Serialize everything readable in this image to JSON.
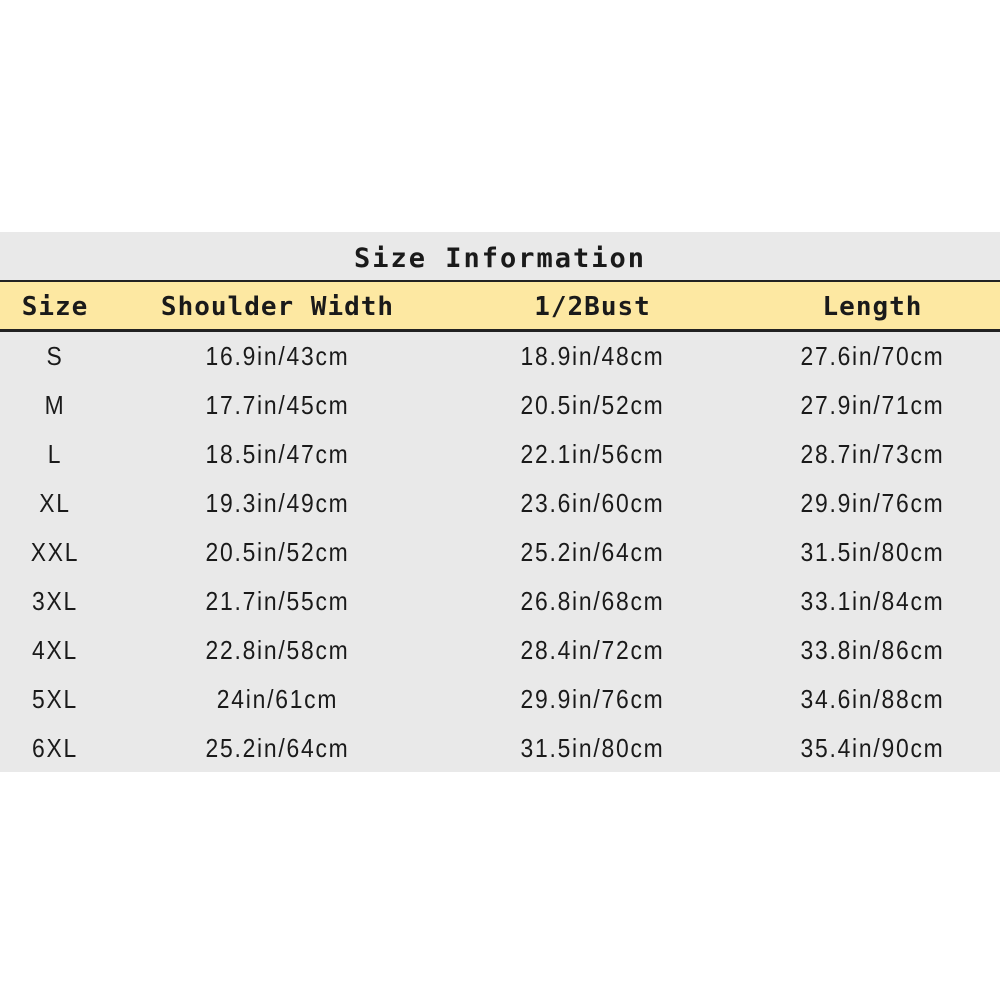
{
  "title": "Size Information",
  "headers": [
    "Size",
    "Shoulder Width",
    "1/2Bust",
    "Length"
  ],
  "rows": [
    [
      "S",
      "16.9in/43cm",
      "18.9in/48cm",
      "27.6in/70cm"
    ],
    [
      "M",
      "17.7in/45cm",
      "20.5in/52cm",
      "27.9in/71cm"
    ],
    [
      "L",
      "18.5in/47cm",
      "22.1in/56cm",
      "28.7in/73cm"
    ],
    [
      "XL",
      "19.3in/49cm",
      "23.6in/60cm",
      "29.9in/76cm"
    ],
    [
      "XXL",
      "20.5in/52cm",
      "25.2in/64cm",
      "31.5in/80cm"
    ],
    [
      "3XL",
      "21.7in/55cm",
      "26.8in/68cm",
      "33.1in/84cm"
    ],
    [
      "4XL",
      "22.8in/58cm",
      "28.4in/72cm",
      "33.8in/86cm"
    ],
    [
      "5XL",
      "24in/61cm",
      "29.9in/76cm",
      "34.6in/88cm"
    ],
    [
      "6XL",
      "25.2in/64cm",
      "31.5in/80cm",
      "35.4in/90cm"
    ]
  ],
  "colors": {
    "header_bg": "#fde8a2",
    "panel_bg": "#e9e9e9"
  }
}
